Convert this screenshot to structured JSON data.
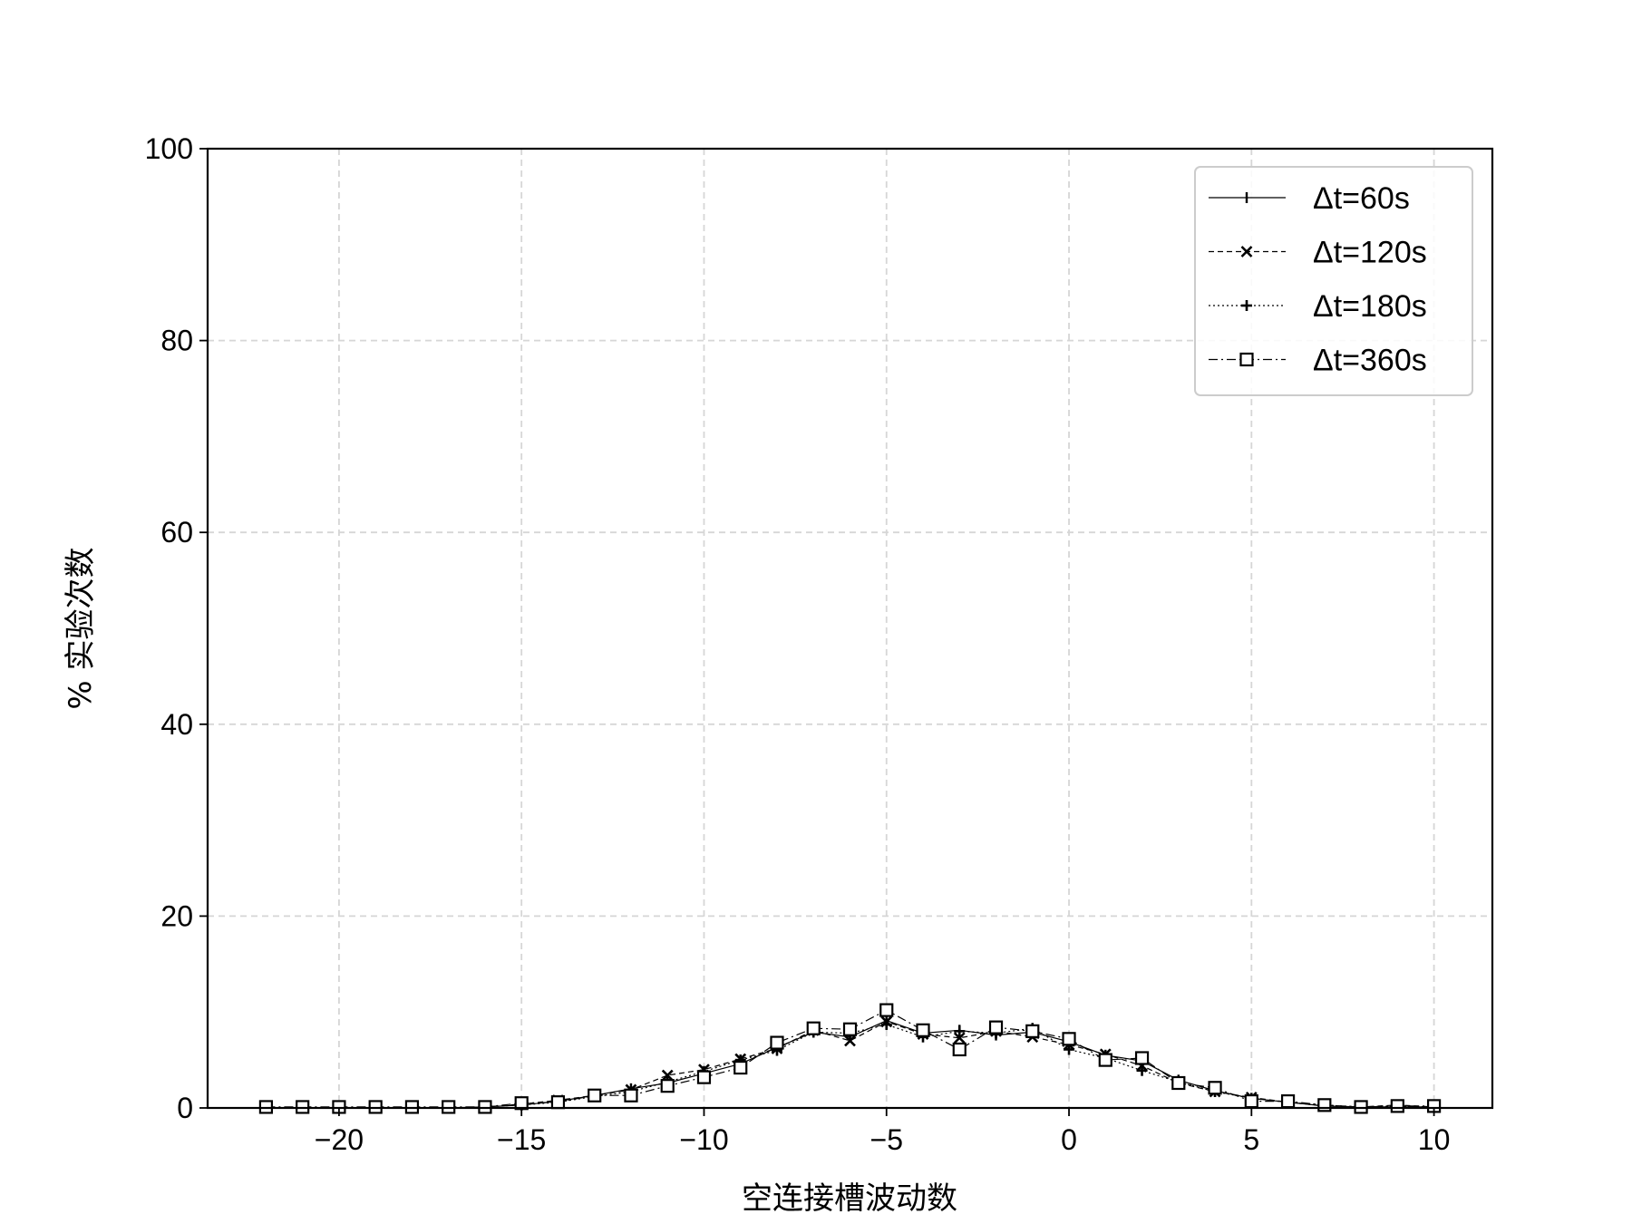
{
  "chart_data": {
    "type": "line",
    "title": "",
    "xlabel": "空连接槽波动数",
    "ylabel": "% 实验次数",
    "xlim": [
      -23.6,
      11.6
    ],
    "ylim": [
      0,
      100
    ],
    "xticks": [
      -20,
      -15,
      -10,
      -5,
      0,
      5,
      10
    ],
    "yticks": [
      0,
      20,
      40,
      60,
      80,
      100
    ],
    "grid": true,
    "legend_position": "top-right",
    "x": [
      -22,
      -21,
      -20,
      -19,
      -18,
      -17,
      -16,
      -15,
      -14,
      -13,
      -12,
      -11,
      -10,
      -9,
      -8,
      -7,
      -6,
      -5,
      -4,
      -3,
      -2,
      -1,
      0,
      1,
      2,
      3,
      4,
      5,
      6,
      7,
      8,
      9,
      10
    ],
    "series": [
      {
        "name": "Δt=60s",
        "marker": "vline",
        "dash": "",
        "values": [
          0,
          0,
          0,
          0,
          0,
          0,
          0.1,
          0.3,
          0.7,
          1.3,
          2.0,
          2.6,
          3.6,
          4.6,
          6.3,
          7.9,
          7.4,
          9.1,
          7.8,
          8.1,
          7.6,
          7.9,
          6.9,
          5.5,
          4.9,
          2.9,
          1.8,
          1.0,
          0.6,
          0.2,
          0.1,
          0.1,
          0.1
        ]
      },
      {
        "name": "Δt=120s",
        "marker": "x",
        "dash": "6,4",
        "values": [
          0,
          0,
          0,
          0,
          0,
          0,
          0.1,
          0.4,
          0.8,
          1.3,
          1.9,
          3.4,
          4.0,
          5.1,
          6.2,
          8.1,
          7.0,
          9.0,
          7.7,
          7.3,
          8.0,
          7.4,
          6.6,
          5.6,
          4.4,
          2.6,
          1.7,
          1.1,
          0.6,
          0.2,
          0.1,
          0.3,
          0.1
        ]
      },
      {
        "name": "Δt=180s",
        "marker": "plus",
        "dash": "2,3",
        "values": [
          0,
          0,
          0,
          0,
          0,
          0,
          0.1,
          0.3,
          0.6,
          1.2,
          1.7,
          2.7,
          3.8,
          5.0,
          6.0,
          7.9,
          7.8,
          8.7,
          7.4,
          8.0,
          7.8,
          8.3,
          6.1,
          5.2,
          3.9,
          2.7,
          1.7,
          1.0,
          0.6,
          0.3,
          0.1,
          0.2,
          0.1
        ]
      },
      {
        "name": "Δt=360s",
        "marker": "square",
        "dash": "10,4,2,4",
        "values": [
          0.1,
          0.1,
          0.1,
          0.1,
          0.1,
          0.1,
          0.1,
          0.5,
          0.6,
          1.3,
          1.3,
          2.3,
          3.2,
          4.2,
          6.8,
          8.3,
          8.2,
          10.2,
          8.1,
          6.1,
          8.4,
          8.0,
          7.2,
          5.0,
          5.2,
          2.6,
          2.1,
          0.7,
          0.7,
          0.3,
          0.1,
          0.2,
          0.2
        ]
      }
    ]
  }
}
